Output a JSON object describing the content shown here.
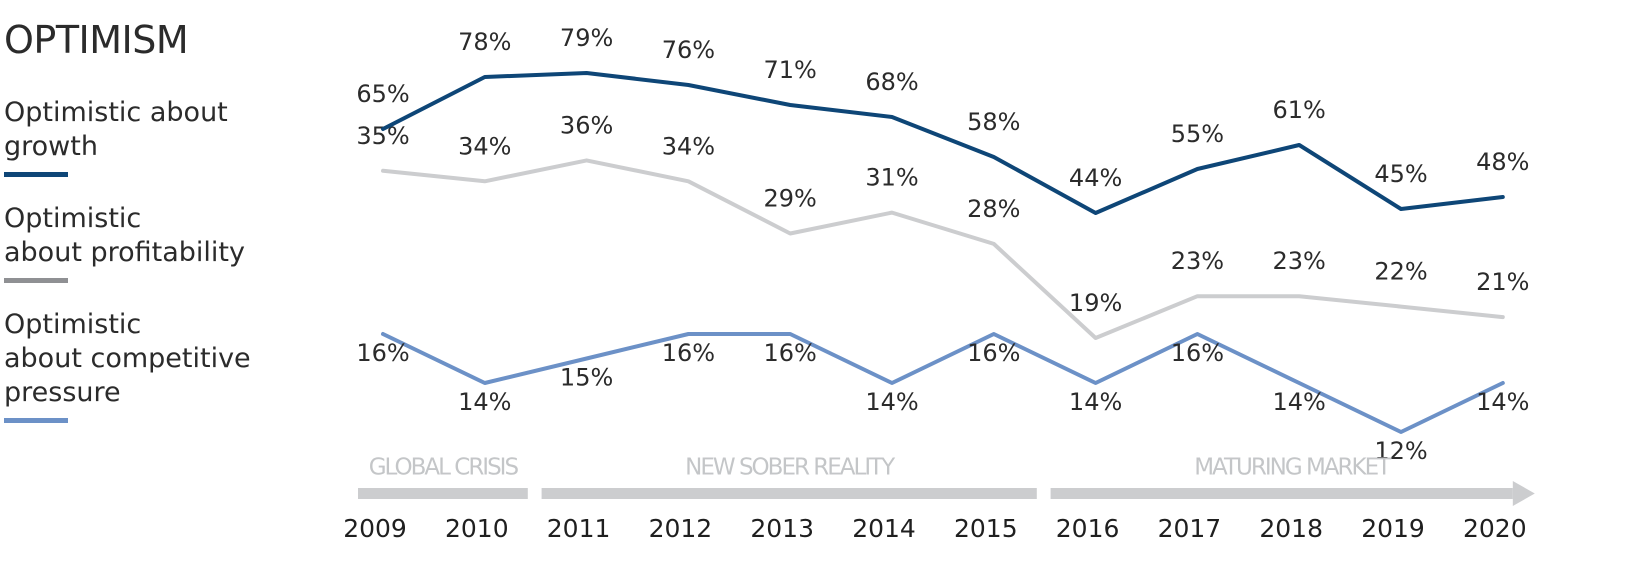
{
  "chart_data": {
    "type": "line",
    "title": "OPTIMISM",
    "x": [
      "2009",
      "2010",
      "2011",
      "2012",
      "2013",
      "2014",
      "2015",
      "2016",
      "2017",
      "2018",
      "2019",
      "2020"
    ],
    "series": [
      {
        "name": "Optimistic about\ngrowth",
        "color": "#0e4677",
        "values": [
          65,
          78,
          79,
          76,
          71,
          68,
          58,
          44,
          55,
          61,
          45,
          48
        ],
        "labels": [
          "65%",
          "78%",
          "79%",
          "76%",
          "71%",
          "68%",
          "58%",
          "44%",
          "55%",
          "61%",
          "45%",
          "48%"
        ]
      },
      {
        "name": "Optimistic\nabout profitability",
        "color": "#cccdcf",
        "legend_color": "#8f9093",
        "values": [
          35,
          34,
          36,
          34,
          29,
          31,
          28,
          19,
          23,
          23,
          22,
          21
        ],
        "labels": [
          "35%",
          "34%",
          "36%",
          "34%",
          "29%",
          "31%",
          "28%",
          "19%",
          "23%",
          "23%",
          "22%",
          "21%"
        ]
      },
      {
        "name": "Optimistic\nabout competitive\npressure",
        "color": "#6c91c7",
        "values": [
          16,
          14,
          15,
          16,
          16,
          14,
          16,
          14,
          16,
          14,
          12,
          14
        ],
        "labels": [
          "16%",
          "14%",
          "15%",
          "16%",
          "16%",
          "14%",
          "16%",
          "14%",
          "16%",
          "14%",
          "12%",
          "14%"
        ]
      }
    ],
    "phases": [
      {
        "label": "GLOBAL CRISIS",
        "from": "2009",
        "to": "2010"
      },
      {
        "label": "NEW SOBER REALITY",
        "from": "2011",
        "to": "2015"
      },
      {
        "label": "MATURING MARKET",
        "from": "2016",
        "to": "2020"
      }
    ],
    "grid": false,
    "legend": "left"
  }
}
